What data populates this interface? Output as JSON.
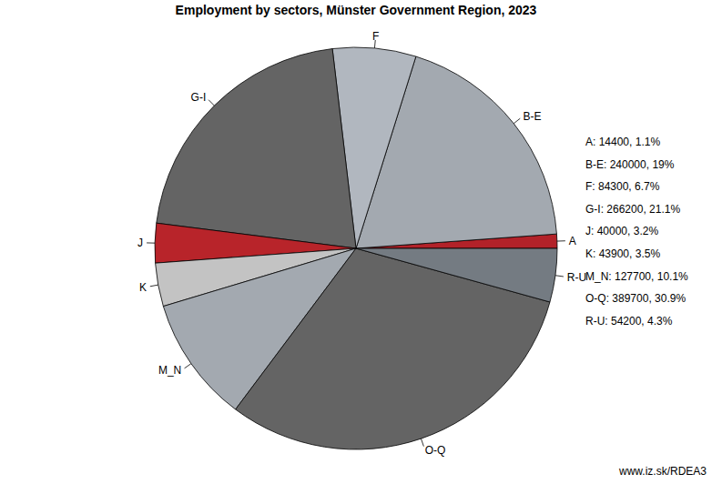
{
  "chart_data": {
    "type": "pie",
    "title": "Employment by sectors, Münster Government Region, 2023",
    "categories": [
      "A",
      "B-E",
      "F",
      "G-I",
      "J",
      "K",
      "M_N",
      "O-Q",
      "R-U"
    ],
    "values": [
      14400,
      240000,
      84300,
      266200,
      40000,
      43900,
      127700,
      389700,
      54200
    ],
    "value_labels": [
      "A: 14400, 1.1%",
      "B-E: 240000, 19%",
      "F: 84300, 6.7%",
      "G-I: 266200, 21.1%",
      "J: 40000, 3.2%",
      "K: 43900, 3.5%",
      "M_N: 127700, 10.1%",
      "O-Q: 389700, 30.9%",
      "R-U: 54200, 4.3%"
    ],
    "colors": [
      "#b22229",
      "#a3a9b0",
      "#b1b7bf",
      "#646464",
      "#b8242a",
      "#c3c3c3",
      "#a3a9b0",
      "#646464",
      "#747b82"
    ],
    "caption": "www.iz.sk/RDEA3"
  }
}
